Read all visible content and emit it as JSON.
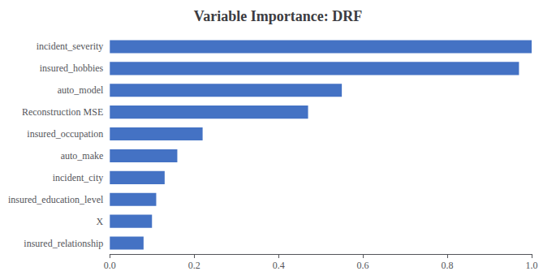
{
  "chart_data": {
    "type": "bar",
    "orientation": "horizontal",
    "title": "Variable Importance: DRF",
    "categories": [
      "insured_relationship",
      "X",
      "insured_education_level",
      "incident_city",
      "auto_make",
      "insured_occupation",
      "Reconstruction MSE",
      "auto_model",
      "insured_hobbies",
      "incident_severity"
    ],
    "values": [
      0.08,
      0.1,
      0.11,
      0.13,
      0.16,
      0.22,
      0.47,
      0.55,
      0.97,
      1.0
    ],
    "color": "#4472C4",
    "xlim": [
      0,
      1.0
    ],
    "xticks": [
      {
        "value": 0,
        "label": "0.0"
      },
      0.2,
      0.4,
      0.6,
      0.8,
      {
        "value": 1.0,
        "label": "1.0"
      }
    ],
    "grid": false
  }
}
